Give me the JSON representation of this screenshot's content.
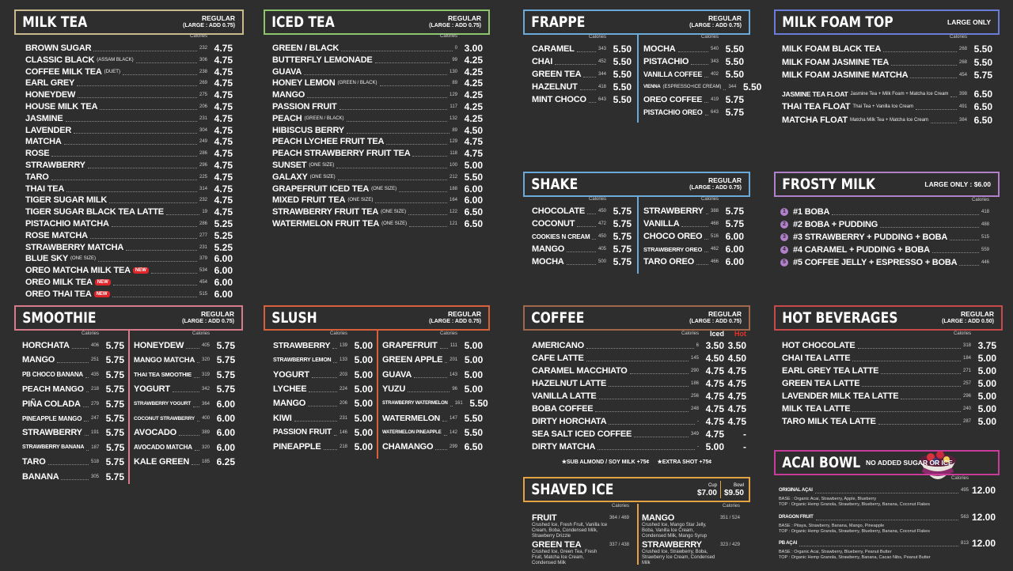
{
  "sections": [
    {
      "title": "MILK TEA",
      "note": [
        "REGULAR",
        "(LARGE : ADD 0.75)"
      ],
      "cal_header": "Calories",
      "columns": [
        [
          {
            "name": "BROWN SUGAR",
            "cal": "232",
            "price": "4.75"
          },
          {
            "name": "CLASSIC BLACK",
            "sub": "(ASSAM BLACK)",
            "cal": "306",
            "price": "4.75"
          },
          {
            "name": "COFFEE MILK TEA",
            "sub": "(DUET)",
            "cal": "238",
            "price": "4.75"
          },
          {
            "name": "EARL GREY",
            "cal": "269",
            "price": "4.75"
          },
          {
            "name": "HONEYDEW",
            "cal": "275",
            "price": "4.75"
          },
          {
            "name": "HOUSE MILK TEA",
            "cal": "206",
            "price": "4.75"
          },
          {
            "name": "JASMINE",
            "cal": "231",
            "price": "4.75"
          },
          {
            "name": "LAVENDER",
            "cal": "304",
            "price": "4.75"
          },
          {
            "name": "MATCHA",
            "cal": "249",
            "price": "4.75"
          },
          {
            "name": "ROSE",
            "cal": "286",
            "price": "4.75"
          },
          {
            "name": "STRAWBERRY",
            "cal": "296",
            "price": "4.75"
          },
          {
            "name": "TARO",
            "cal": "225",
            "price": "4.75"
          },
          {
            "name": "THAI TEA",
            "cal": "314",
            "price": "4.75"
          },
          {
            "name": "TIGER SUGAR MILK",
            "cal": "232",
            "price": "4.75"
          },
          {
            "name": "TIGER SUGAR BLACK TEA LATTE",
            "cal": "19",
            "price": "4.75"
          },
          {
            "name": "PISTACHIO MATCHA",
            "cal": "286",
            "price": "5.25"
          },
          {
            "name": "ROSE MATCHA",
            "cal": "277",
            "price": "5.25"
          },
          {
            "name": "STRAWBERRY MATCHA",
            "cal": "231",
            "price": "5.25"
          },
          {
            "name": "BLUE SKY",
            "sub": "(ONE SIZE)",
            "cal": "379",
            "price": "6.00"
          },
          {
            "name": "OREO MATCHA MILK TEA",
            "badge": "NEW",
            "cal": "534",
            "price": "6.00"
          },
          {
            "name": "OREO MILK TEA",
            "badge": "NEW",
            "cal": "454",
            "price": "6.00"
          },
          {
            "name": "OREO THAI TEA",
            "badge": "NEW",
            "cal": "515",
            "price": "6.00"
          }
        ]
      ]
    },
    {
      "title": "ICED TEA",
      "note": [
        "REGULAR",
        "(LARGE : ADD 0.75)"
      ],
      "cal_header": "Calories",
      "columns": [
        [
          {
            "name": "GREEN / BLACK",
            "cal": "0",
            "price": "3.00"
          },
          {
            "name": "BUTTERFLY LEMONADE",
            "cal": "99",
            "price": "4.25"
          },
          {
            "name": "GUAVA",
            "cal": "130",
            "price": "4.25"
          },
          {
            "name": "HONEY LEMON",
            "sub": "(GREEN / BLACK)",
            "cal": "89",
            "price": "4.25"
          },
          {
            "name": "MANGO",
            "cal": "129",
            "price": "4.25"
          },
          {
            "name": "PASSION FRUIT",
            "cal": "117",
            "price": "4.25"
          },
          {
            "name": "PEACH",
            "sub": "(GREEN / BLACK)",
            "cal": "132",
            "price": "4.25"
          },
          {
            "name": "HIBISCUS BERRY",
            "cal": "89",
            "price": "4.50"
          },
          {
            "name": "PEACH LYCHEE FRUIT TEA",
            "cal": "129",
            "price": "4.75"
          },
          {
            "name": "PEACH STRAWBERRY FRUIT TEA",
            "cal": "118",
            "price": "4.75"
          },
          {
            "name": "SUNSET",
            "sub": "(ONE SIZE)",
            "cal": "100",
            "price": "5.00"
          },
          {
            "name": "GALAXY",
            "sub": "(ONE SIZE)",
            "cal": "212",
            "price": "5.50"
          },
          {
            "name": "GRAPEFRUIT ICED TEA",
            "sub": "(ONE SIZE)",
            "cal": "188",
            "price": "6.00"
          },
          {
            "name": "MIXED FRUIT TEA",
            "sub": "(ONE SIZE)",
            "cal": "164",
            "price": "6.00"
          },
          {
            "name": "STRAWBERRY FRUIT TEA",
            "sub": "(ONE SIZE)",
            "cal": "122",
            "price": "6.50"
          },
          {
            "name": "WATERMELON FRUIT TEA",
            "sub": "(ONE SIZE)",
            "cal": "121",
            "price": "6.50"
          }
        ]
      ]
    },
    {
      "title": "FRAPPE",
      "note": [
        "REGULAR",
        "(LARGE : ADD 0.75)"
      ],
      "cal_header": "Calories",
      "columns": [
        [
          {
            "name": "CARAMEL",
            "cal": "343",
            "price": "5.50"
          },
          {
            "name": "CHAI",
            "cal": "452",
            "price": "5.50"
          },
          {
            "name": "GREEN TEA",
            "cal": "344",
            "price": "5.50"
          },
          {
            "name": "HAZELNUT",
            "cal": "418",
            "price": "5.50"
          },
          {
            "name": "MINT CHOCO",
            "cal": "643",
            "price": "5.50"
          }
        ],
        [
          {
            "name": "MOCHA",
            "cal": "540",
            "price": "5.50"
          },
          {
            "name": "PISTACHIO",
            "cal": "343",
            "price": "5.50"
          },
          {
            "name": "VANILLA COFFEE",
            "cal": "402",
            "price": "5.50"
          },
          {
            "name": "VIENNA",
            "sub": "(ESPRESSO+ICE CREAM)",
            "cal": "344",
            "price": "5.50"
          },
          {
            "name": "OREO COFFEE",
            "cal": "419",
            "price": "5.75"
          },
          {
            "name": "PISTACHIO OREO",
            "cal": "643",
            "price": "5.75"
          }
        ]
      ]
    },
    {
      "title": "MILK FOAM TOP",
      "note": [
        "LARGE ONLY"
      ],
      "cal_header": "Calories",
      "columns": [
        [
          {
            "name": "MILK FOAM BLACK TEA",
            "cal": "268",
            "price": "5.50"
          },
          {
            "name": "MILK FOAM JASMINE TEA",
            "cal": "268",
            "price": "5.50"
          },
          {
            "name": "MILK FOAM JASMINE MATCHA",
            "cal": "454",
            "price": "5.75"
          },
          {
            "name": "JASMINE TEA FLOAT",
            "sub": "Jasmine Tea + Milk Foam + Matcha Ice Cream",
            "cal": "398",
            "price": "6.50"
          },
          {
            "name": "THAI TEA FLOAT",
            "sub": "Thai Tea + Vanilla Ice Cream",
            "cal": "491",
            "price": "6.50"
          },
          {
            "name": "MATCHA FLOAT",
            "sub": "Matcha Milk Tea + Matcha Ice Cream",
            "cal": "384",
            "price": "6.50"
          }
        ]
      ]
    },
    {
      "title": "SHAKE",
      "note": [
        "REGULAR",
        "(LARGE : ADD 0.75)"
      ],
      "cal_header": "Calories",
      "columns": [
        [
          {
            "name": "CHOCOLATE",
            "cal": "450",
            "price": "5.75"
          },
          {
            "name": "COCONUT",
            "cal": "472",
            "price": "5.75"
          },
          {
            "name": "COOKIES N CREAM",
            "cal": "450",
            "price": "5.75"
          },
          {
            "name": "MANGO",
            "cal": "405",
            "price": "5.75"
          },
          {
            "name": "MOCHA",
            "cal": "500",
            "price": "5.75"
          }
        ],
        [
          {
            "name": "STRAWBERRY",
            "cal": "388",
            "price": "5.75"
          },
          {
            "name": "VANILLA",
            "cal": "468",
            "price": "5.75"
          },
          {
            "name": "CHOCO OREO",
            "cal": "516",
            "price": "6.00"
          },
          {
            "name": "STRAWBERRY OREO",
            "cal": "462",
            "price": "6.00"
          },
          {
            "name": "TARO OREO",
            "cal": "466",
            "price": "6.00"
          }
        ]
      ]
    },
    {
      "title": "FROSTY MILK",
      "note": [
        "LARGE ONLY : $6.00"
      ],
      "cal_header": "Calories",
      "columns": [
        [
          {
            "num": "1",
            "name": "#1 BOBA",
            "cal": "418"
          },
          {
            "num": "2",
            "name": "#2 BOBA + PUDDING",
            "cal": "488"
          },
          {
            "num": "3",
            "name": "#3 STRAWBERRY + PUDDING + BOBA",
            "cal": "515"
          },
          {
            "num": "4",
            "name": "#4 CARAMEL + PUDDING + BOBA",
            "cal": "559"
          },
          {
            "num": "5",
            "name": "#5 COFFEE JELLY + ESPRESSO + BOBA",
            "cal": "446"
          }
        ]
      ]
    },
    {
      "title": "SMOOTHIE",
      "note": [
        "REGULAR",
        "(LARGE : ADD 0.75)"
      ],
      "cal_header": "Calories",
      "columns": [
        [
          {
            "name": "HORCHATA",
            "cal": "406",
            "price": "5.75"
          },
          {
            "name": "MANGO",
            "cal": "251",
            "price": "5.75"
          },
          {
            "name": "PB CHOCO BANANA",
            "cal": "435",
            "price": "5.75"
          },
          {
            "name": "PEACH MANGO",
            "cal": "218",
            "price": "5.75"
          },
          {
            "name": "PIÑA COLADA",
            "cal": "279",
            "price": "5.75"
          },
          {
            "name": "PINEAPPLE MANGO",
            "cal": "247",
            "price": "5.75"
          },
          {
            "name": "STRAWBERRY",
            "cal": "191",
            "price": "5.75"
          },
          {
            "name": "STRAWBERRY BANANA",
            "cal": "187",
            "price": "5.75"
          },
          {
            "name": "TARO",
            "cal": "518",
            "price": "5.75"
          },
          {
            "name": "BANANA",
            "cal": "305",
            "price": "5.75"
          }
        ],
        [
          {
            "name": "HONEYDEW",
            "cal": "405",
            "price": "5.75"
          },
          {
            "name": "MANGO MATCHA",
            "cal": "320",
            "price": "5.75"
          },
          {
            "name": "THAI TEA SMOOTHIE",
            "cal": "319",
            "price": "5.75"
          },
          {
            "name": "YOGURT",
            "cal": "342",
            "price": "5.75"
          },
          {
            "name": "STRAWBERRY YOGURT",
            "cal": "364",
            "price": "6.00"
          },
          {
            "name": "COCONUT STRAWBERRY",
            "cal": "400",
            "price": "6.00"
          },
          {
            "name": "AVOCADO",
            "cal": "389",
            "price": "6.00"
          },
          {
            "name": "AVOCADO MATCHA",
            "cal": "320",
            "price": "6.00"
          },
          {
            "name": "KALE GREEN",
            "cal": "185",
            "price": "6.25"
          }
        ]
      ]
    },
    {
      "title": "SLUSH",
      "note": [
        "REGULAR",
        "(LARGE : ADD 0.75)"
      ],
      "cal_header": "Calories",
      "columns": [
        [
          {
            "name": "STRAWBERRY",
            "cal": "139",
            "price": "5.00"
          },
          {
            "name": "STRAWBERRY LEMON",
            "cal": "133",
            "price": "5.00"
          },
          {
            "name": "YOGURT",
            "cal": "203",
            "price": "5.00"
          },
          {
            "name": "LYCHEE",
            "cal": "224",
            "price": "5.00"
          },
          {
            "name": "MANGO",
            "cal": "206",
            "price": "5.00"
          },
          {
            "name": "KIWI",
            "cal": "231",
            "price": "5.00"
          },
          {
            "name": "PASSION FRUIT",
            "cal": "146",
            "price": "5.00"
          },
          {
            "name": "PINEAPPLE",
            "cal": "218",
            "price": "5.00"
          }
        ],
        [
          {
            "name": "GRAPEFRUIT",
            "cal": "111",
            "price": "5.00"
          },
          {
            "name": "GREEN APPLE",
            "cal": "201",
            "price": "5.00"
          },
          {
            "name": "GUAVA",
            "cal": "143",
            "price": "5.00"
          },
          {
            "name": "YUZU",
            "cal": "96",
            "price": "5.00"
          },
          {
            "name": "STRAWBERRY WATERMELON",
            "cal": "161",
            "price": "5.50"
          },
          {
            "name": "WATERMELON",
            "cal": "147",
            "price": "5.50"
          },
          {
            "name": "WATERMELON PINEAPPLE",
            "cal": "142",
            "price": "5.50"
          },
          {
            "name": "CHAMANGO",
            "cal": "299",
            "price": "6.50"
          }
        ]
      ]
    },
    {
      "title": "COFFEE",
      "note": [
        "REGULAR",
        "(LARGE : ADD 0.75)"
      ],
      "cal_header": "Calories",
      "price_headers": [
        "Iced",
        "Hot"
      ],
      "columns": [
        [
          {
            "name": "AMERICANO",
            "cal": "6",
            "iced": "3.50",
            "hot": "3.50"
          },
          {
            "name": "CAFE LATTE",
            "cal": "145",
            "iced": "4.50",
            "hot": "4.50"
          },
          {
            "name": "CARAMEL MACCHIATO",
            "cal": "290",
            "iced": "4.75",
            "hot": "4.75"
          },
          {
            "name": "HAZELNUT LATTE",
            "cal": "186",
            "iced": "4.75",
            "hot": "4.75"
          },
          {
            "name": "VANILLA LATTE",
            "cal": "256",
            "iced": "4.75",
            "hot": "4.75"
          },
          {
            "name": "BOBA COFFEE",
            "cal": "248",
            "iced": "4.75",
            "hot": "4.75"
          },
          {
            "name": "DIRTY HORCHATA",
            "cal": "-",
            "iced": "4.75",
            "hot": "4.75"
          },
          {
            "name": "SEA SALT ICED COFFEE",
            "cal": "349",
            "iced": "4.75",
            "hot": "-"
          },
          {
            "name": "DIRTY MATCHA",
            "cal": "-",
            "iced": "5.00",
            "hot": "-"
          }
        ]
      ],
      "footer": [
        "★SUB ALMOND / SOY MILK +75¢",
        "★EXTRA SHOT +75¢"
      ]
    },
    {
      "title": "HOT BEVERAGES",
      "note": [
        "REGULAR",
        "(LARGE : ADD 0.50)"
      ],
      "cal_header": "Calories",
      "columns": [
        [
          {
            "name": "HOT CHOCOLATE",
            "cal": "318",
            "price": "3.75"
          },
          {
            "name": "CHAI TEA LATTE",
            "cal": "184",
            "price": "5.00"
          },
          {
            "name": "EARL GREY TEA LATTE",
            "cal": "271",
            "price": "5.00"
          },
          {
            "name": "GREEN TEA LATTE",
            "cal": "257",
            "price": "5.00"
          },
          {
            "name": "LAVENDER MILK TEA LATTE",
            "cal": "296",
            "price": "5.00"
          },
          {
            "name": "MILK TEA LATTE",
            "cal": "240",
            "price": "5.00"
          },
          {
            "name": "TARO MILK TEA LATTE",
            "cal": "287",
            "price": "5.00"
          }
        ]
      ]
    },
    {
      "title": "SHAVED ICE",
      "sizes": [
        {
          "label": "Cup",
          "price": "$7.00"
        },
        {
          "label": "Bowl",
          "price": "$9.50"
        }
      ],
      "cal_header": "Calories",
      "columns": [
        [
          {
            "name": "FRUIT",
            "cal": "364 / 469",
            "desc": "Crushed Ice, Fresh Fruit, Vanilla Ice Cream, Boba, Condensed Milk, Strawberry Drizzle"
          },
          {
            "name": "GREEN TEA",
            "cal": "337 / 438",
            "desc": "Crushed Ice, Green Tea, Fresh Fruit, Matcha Ice Cream, Condensed Milk"
          }
        ],
        [
          {
            "name": "MANGO",
            "cal": "351 / 524",
            "desc": "Crushed Ice, Mango Star Jelly, Boba, Vanilla Ice Cream, Condensed Milk, Mango Syrup"
          },
          {
            "name": "STRAWBERRY",
            "cal": "323 / 429",
            "desc": "Crushed Ice, Strawberry, Boba, Strawberry Ice Cream, Condensed Milk"
          }
        ]
      ]
    },
    {
      "title": "ACAI BOWL",
      "note": [
        "NO ADDED SUGAR OR ICE"
      ],
      "cal_header": "Calories",
      "columns": [
        [
          {
            "name": "ORIGINAL AÇAI",
            "cal": "495",
            "price": "12.00",
            "base": "BASE :  Organic Acai, Strawberry, Apple, Blueberry",
            "top": "TOP :  Organic Hemp Granola, Strawberry, Blueberry, Banana, Coconut Flakes"
          },
          {
            "name": "DRAGON FRUIT",
            "cal": "563",
            "price": "12.00",
            "base": "BASE :  Pitaya, Strawberry, Banana, Mango, Pineapple",
            "top": "TOP :  Organic Hemp Granola, Strawberry, Blueberry, Banana, Coconut Flakes"
          },
          {
            "name": "PB AÇAI",
            "cal": "813",
            "price": "12.00",
            "base": "BASE :  Organic Acai, Strawberry, Blueberry, Peanut Butter",
            "top": "TOP :  Organic Hemp Granola, Strawberry, Banana, Cacao Nibs, Peanut Butter"
          }
        ]
      ]
    }
  ]
}
